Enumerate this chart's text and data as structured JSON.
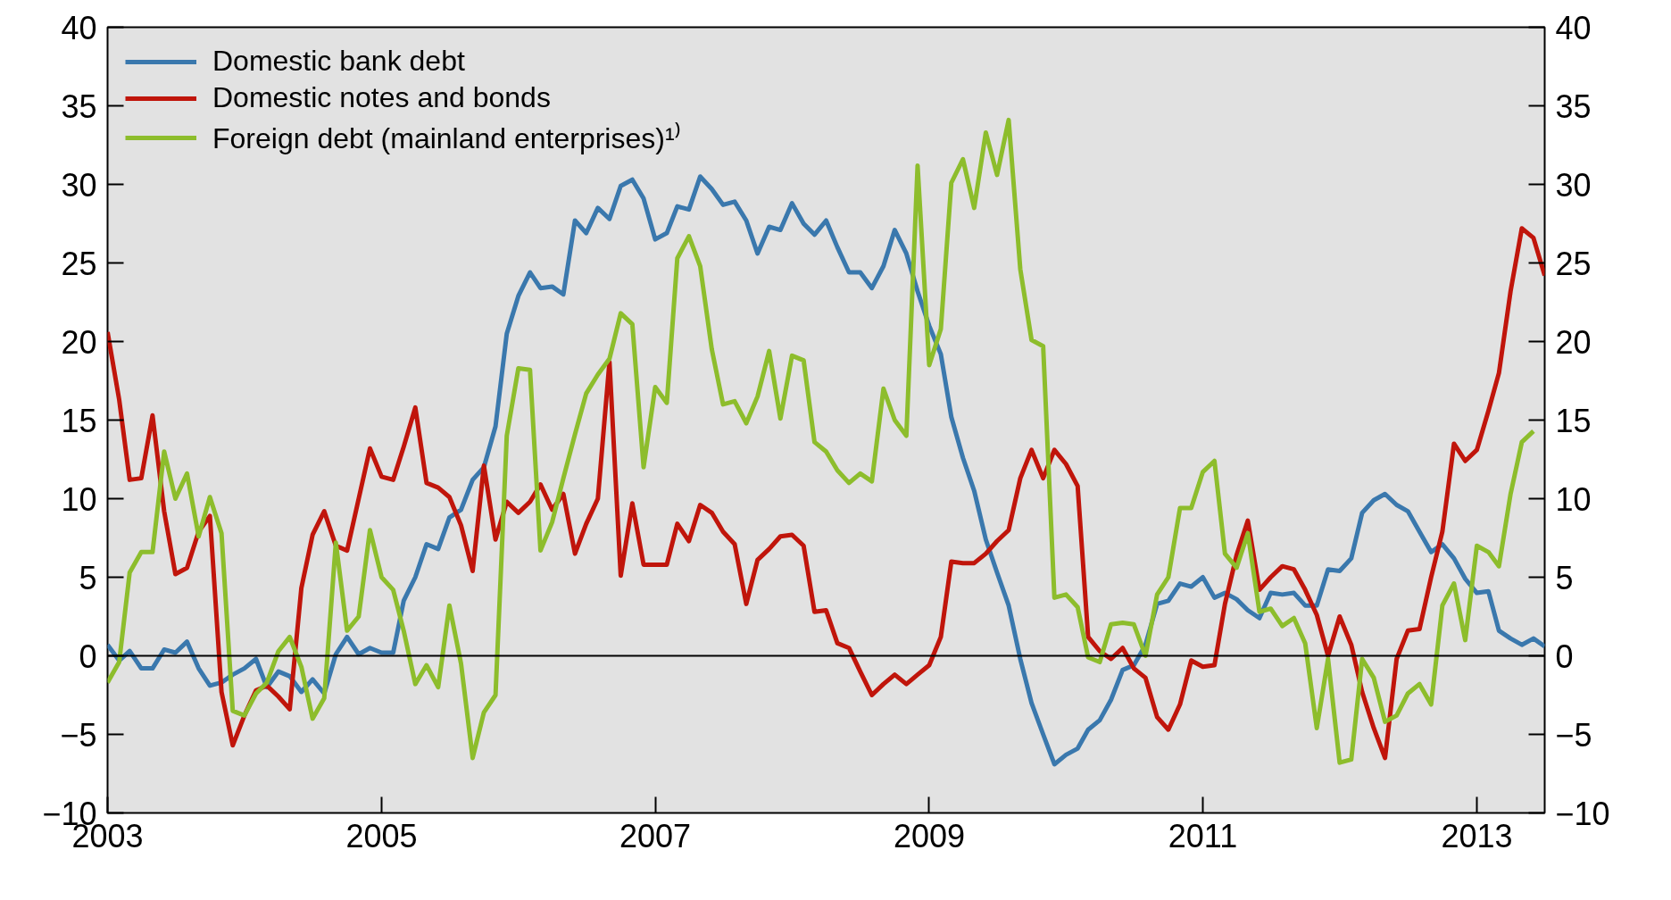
{
  "chart_data": {
    "type": "line",
    "x": [
      "2003-01",
      "2003-02",
      "2003-03",
      "2003-04",
      "2003-05",
      "2003-06",
      "2003-07",
      "2003-08",
      "2003-09",
      "2003-10",
      "2003-11",
      "2003-12",
      "2004-01",
      "2004-02",
      "2004-03",
      "2004-04",
      "2004-05",
      "2004-06",
      "2004-07",
      "2004-08",
      "2004-09",
      "2004-10",
      "2004-11",
      "2004-12",
      "2005-01",
      "2005-02",
      "2005-03",
      "2005-04",
      "2005-05",
      "2005-06",
      "2005-07",
      "2005-08",
      "2005-09",
      "2005-10",
      "2005-11",
      "2005-12",
      "2006-01",
      "2006-02",
      "2006-03",
      "2006-04",
      "2006-05",
      "2006-06",
      "2006-07",
      "2006-08",
      "2006-09",
      "2006-10",
      "2006-11",
      "2006-12",
      "2007-01",
      "2007-02",
      "2007-03",
      "2007-04",
      "2007-05",
      "2007-06",
      "2007-07",
      "2007-08",
      "2007-09",
      "2007-10",
      "2007-11",
      "2007-12",
      "2008-01",
      "2008-02",
      "2008-03",
      "2008-04",
      "2008-05",
      "2008-06",
      "2008-07",
      "2008-08",
      "2008-09",
      "2008-10",
      "2008-11",
      "2008-12",
      "2009-01",
      "2009-02",
      "2009-03",
      "2009-04",
      "2009-05",
      "2009-06",
      "2009-07",
      "2009-08",
      "2009-09",
      "2009-10",
      "2009-11",
      "2009-12",
      "2010-01",
      "2010-02",
      "2010-03",
      "2010-04",
      "2010-05",
      "2010-06",
      "2010-07",
      "2010-08",
      "2010-09",
      "2010-10",
      "2010-11",
      "2010-12",
      "2011-01",
      "2011-02",
      "2011-03",
      "2011-04",
      "2011-05",
      "2011-06",
      "2011-07",
      "2011-08",
      "2011-09",
      "2011-10",
      "2011-11",
      "2011-12",
      "2012-01",
      "2012-02",
      "2012-03",
      "2012-04",
      "2012-05",
      "2012-06",
      "2012-07",
      "2012-08",
      "2012-09",
      "2012-10",
      "2012-11",
      "2012-12",
      "2013-01",
      "2013-02",
      "2013-03",
      "2013-04",
      "2013-05",
      "2013-06",
      "2013-07"
    ],
    "xlim": [
      "2003-01",
      "2013-07"
    ],
    "xticks": [
      "2003",
      "2005",
      "2007",
      "2009",
      "2011",
      "2013"
    ],
    "ylim": [
      -10,
      40
    ],
    "yticks": [
      {
        "value": -10,
        "label": "−10"
      },
      {
        "value": -5,
        "label": "−5"
      },
      0,
      5,
      10,
      15,
      20,
      25,
      30,
      35,
      40
    ],
    "y2lim": [
      -10,
      40
    ],
    "y2ticks": [
      {
        "value": -10,
        "label": "−10"
      },
      {
        "value": -5,
        "label": "−5"
      },
      0,
      5,
      10,
      15,
      20,
      25,
      30,
      35,
      40
    ],
    "grid": false,
    "legend": "top left",
    "line_style": "solid",
    "marker": "none",
    "ref_lines": [
      {
        "axis": "y",
        "value": 0,
        "label": null,
        "color": "#000000"
      }
    ],
    "series": [
      {
        "name": "Domestic bank debt",
        "color": "#3a78ad",
        "values": [
          0.7,
          -0.3,
          0.3,
          -0.8,
          -0.8,
          0.4,
          0.2,
          0.9,
          -0.8,
          -1.9,
          -1.7,
          -1.2,
          -0.8,
          -0.2,
          -2.0,
          -1.0,
          -1.3,
          -2.3,
          -1.5,
          -2.4,
          0.1,
          1.2,
          0.1,
          0.5,
          0.2,
          0.2,
          3.5,
          5.0,
          7.1,
          6.8,
          8.8,
          9.3,
          11.2,
          12.0,
          14.6,
          20.5,
          22.9,
          24.4,
          23.4,
          23.5,
          23.0,
          27.7,
          26.9,
          28.5,
          27.8,
          29.9,
          30.3,
          29.1,
          26.5,
          26.9,
          28.6,
          28.4,
          30.5,
          29.7,
          28.7,
          28.9,
          27.7,
          25.6,
          27.3,
          27.1,
          28.8,
          27.5,
          26.8,
          27.7,
          26.0,
          24.4,
          24.4,
          23.4,
          24.8,
          27.1,
          25.6,
          23.2,
          21.0,
          19.2,
          15.2,
          12.6,
          10.5,
          7.4,
          5.3,
          3.2,
          -0.2,
          -3.0,
          -5.0,
          -6.9,
          -6.3,
          -5.9,
          -4.7,
          -4.1,
          -2.8,
          -0.9,
          -0.6,
          0.7,
          3.3,
          3.5,
          4.6,
          4.4,
          5.0,
          3.7,
          4.0,
          3.6,
          2.9,
          2.4,
          4.0,
          3.9,
          4.0,
          3.2,
          3.2,
          5.5,
          5.4,
          6.2,
          9.1,
          9.9,
          10.3,
          9.6,
          9.2,
          7.9,
          6.6,
          7.1,
          6.2,
          4.9,
          4.0,
          4.1,
          1.6,
          1.1,
          0.7,
          1.1,
          0.6
        ]
      },
      {
        "name": "Domestic notes and bonds",
        "color": "#c0150b",
        "values": [
          20.6,
          16.3,
          11.2,
          11.3,
          15.3,
          9.2,
          5.2,
          5.6,
          7.9,
          8.9,
          -2.3,
          -5.7,
          -3.8,
          -2.2,
          -1.9,
          -2.6,
          -3.4,
          4.3,
          7.7,
          9.2,
          7.0,
          6.7,
          10.0,
          13.2,
          11.4,
          11.2,
          13.3,
          15.8,
          11.0,
          10.7,
          10.1,
          8.3,
          5.4,
          12.1,
          7.4,
          9.8,
          9.1,
          9.8,
          10.9,
          9.3,
          10.3,
          6.5,
          8.4,
          10.0,
          18.7,
          5.1,
          9.7,
          5.8,
          5.8,
          5.8,
          8.4,
          7.3,
          9.6,
          9.1,
          7.9,
          7.1,
          3.3,
          6.1,
          6.8,
          7.6,
          7.7,
          7.0,
          2.8,
          2.9,
          0.8,
          0.5,
          -1.0,
          -2.5,
          -1.8,
          -1.2,
          -1.8,
          -1.2,
          -0.6,
          1.2,
          6.0,
          5.9,
          5.9,
          6.5,
          7.3,
          8.0,
          11.3,
          13.1,
          11.3,
          13.1,
          12.2,
          10.8,
          1.2,
          0.3,
          -0.2,
          0.5,
          -0.8,
          -1.4,
          -3.9,
          -4.7,
          -3.1,
          -0.3,
          -0.7,
          -0.6,
          3.3,
          6.4,
          8.6,
          4.2,
          5.0,
          5.7,
          5.5,
          4.2,
          2.6,
          0.0,
          2.5,
          0.7,
          -2.3,
          -4.6,
          -6.5,
          -0.2,
          1.6,
          1.7,
          5.0,
          7.9,
          13.5,
          12.4,
          13.1,
          15.6,
          18.0,
          23.2,
          27.2,
          26.6,
          24.2
        ]
      },
      {
        "name": "Foreign debt (mainland enterprises)¹⁾",
        "color": "#8dbd2c",
        "values": [
          -1.7,
          -0.4,
          5.3,
          6.6,
          6.6,
          13.0,
          10.0,
          11.6,
          7.6,
          10.1,
          7.8,
          -3.5,
          -3.8,
          -2.4,
          -1.7,
          0.3,
          1.2,
          -0.7,
          -4.0,
          -2.7,
          7.2,
          1.6,
          2.5,
          8.0,
          5.0,
          4.2,
          1.6,
          -1.8,
          -0.6,
          -2.0,
          3.2,
          -0.5,
          -6.5,
          -3.6,
          -2.5,
          14.0,
          18.3,
          18.2,
          6.7,
          8.5,
          11.3,
          14.1,
          16.7,
          17.9,
          18.9,
          21.8,
          21.1,
          12.0,
          17.1,
          16.1,
          25.3,
          26.7,
          24.8,
          19.5,
          16.0,
          16.2,
          14.8,
          16.5,
          19.4,
          15.1,
          19.1,
          18.8,
          13.6,
          13.0,
          11.8,
          11.0,
          11.6,
          11.1,
          17.0,
          15.0,
          14.0,
          31.2,
          18.5,
          20.8,
          30.1,
          31.6,
          28.5,
          33.3,
          30.6,
          34.1,
          24.6,
          20.1,
          19.7,
          3.7,
          3.9,
          3.1,
          -0.1,
          -0.4,
          2.0,
          2.1,
          2.0,
          0.0,
          3.9,
          5.0,
          9.4,
          9.4,
          11.7,
          12.4,
          6.5,
          5.6,
          7.8,
          2.8,
          3.0,
          1.9,
          2.4,
          0.8,
          -4.6,
          -0.2,
          -6.8,
          -6.6,
          -0.2,
          -1.4,
          -4.2,
          -3.8,
          -2.4,
          -1.8,
          -3.1,
          3.2,
          4.6,
          1.0,
          7.0,
          6.6,
          5.7,
          10.3,
          13.6,
          14.3,
          null
        ]
      }
    ]
  }
}
